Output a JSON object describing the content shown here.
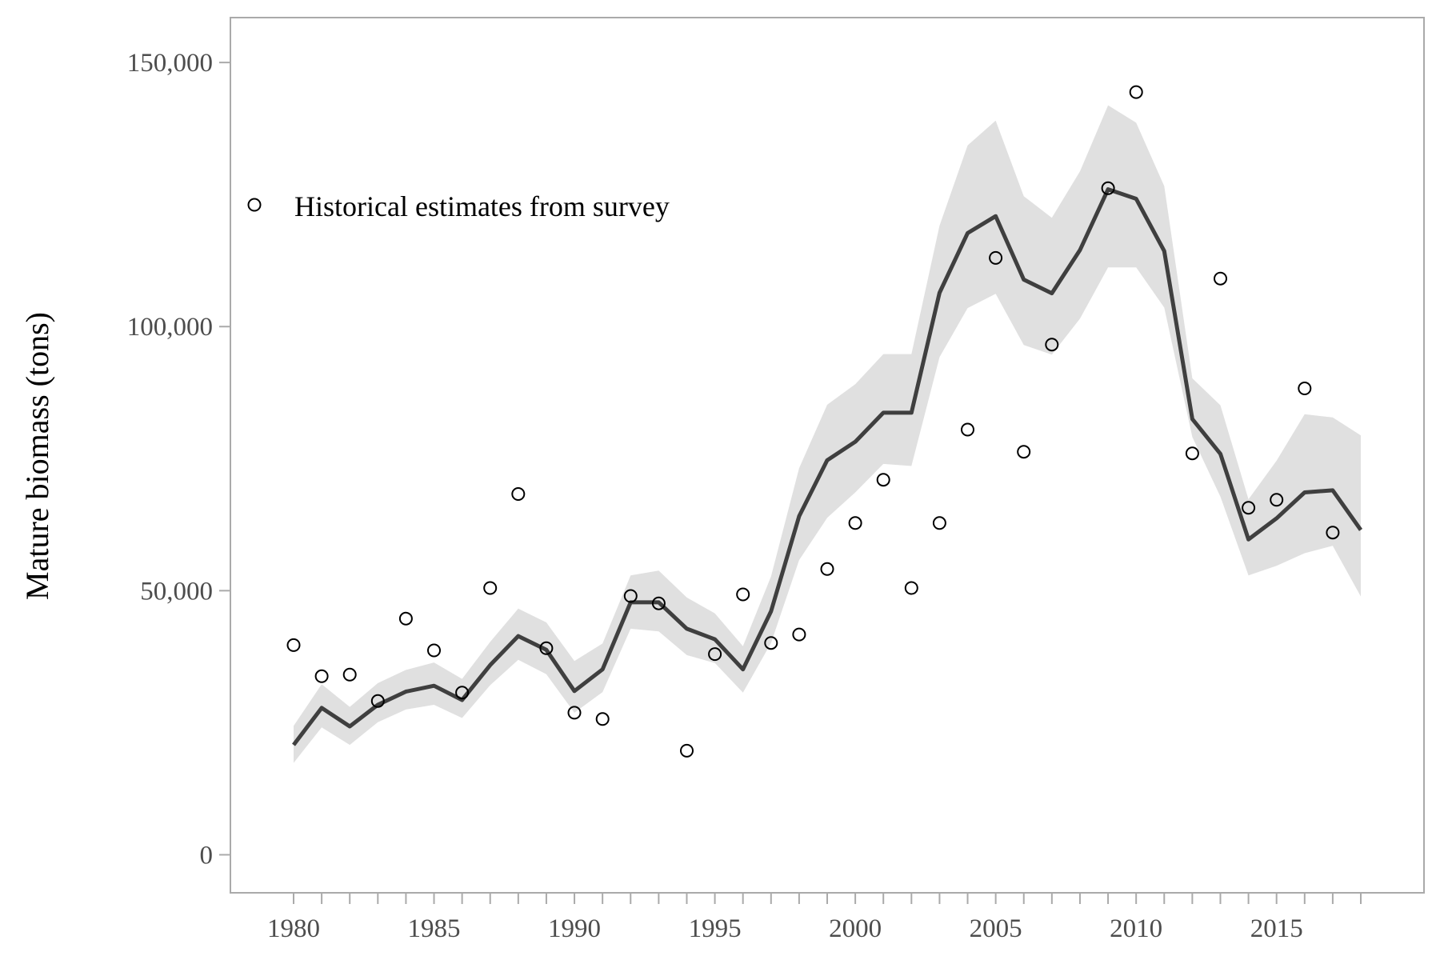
{
  "chart_data": {
    "type": "line",
    "title": "",
    "xlabel": "",
    "ylabel": "Mature biomass (tons)",
    "xlim": [
      1977.75,
      2020.25
    ],
    "ylim": [
      -7200,
      158500
    ],
    "x_ticks": [
      1980,
      1985,
      1990,
      1995,
      2000,
      2005,
      2010,
      2015
    ],
    "x_tick_labels": [
      "1980",
      "1985",
      "1990",
      "1995",
      "2000",
      "2005",
      "2010",
      "2015"
    ],
    "y_ticks": [
      0,
      50000,
      100000,
      150000
    ],
    "y_tick_labels": [
      "0",
      "50,000",
      "100,000",
      "150,000"
    ],
    "grid": false,
    "legend": {
      "position": "top-left",
      "entries": [
        "Historical estimates from survey"
      ]
    },
    "years": [
      1980,
      1981,
      1982,
      1983,
      1984,
      1985,
      1986,
      1987,
      1988,
      1989,
      1990,
      1991,
      1992,
      1993,
      1994,
      1995,
      1996,
      1997,
      1998,
      1999,
      2000,
      2001,
      2002,
      2003,
      2004,
      2005,
      2006,
      2007,
      2008,
      2009,
      2010,
      2011,
      2012,
      2013,
      2014,
      2015,
      2016,
      2017,
      2018
    ],
    "series": [
      {
        "kind": "line",
        "values": [
          20800,
          27800,
          24300,
          28400,
          30900,
          32000,
          29300,
          35900,
          41400,
          38800,
          31000,
          35100,
          47800,
          47800,
          42800,
          40800,
          35100,
          46100,
          64100,
          74700,
          78200,
          83700,
          83700,
          106400,
          117700,
          120900,
          108900,
          106300,
          114500,
          126000,
          124200,
          114300,
          82500,
          75900,
          59700,
          63700,
          68600,
          69000,
          61500
        ]
      },
      {
        "kind": "band",
        "lower": [
          17400,
          24100,
          20800,
          25100,
          27500,
          28400,
          25900,
          32100,
          36900,
          34200,
          26900,
          30800,
          42800,
          42300,
          37800,
          36300,
          30700,
          40100,
          55800,
          63800,
          68600,
          74000,
          73600,
          94200,
          103500,
          106200,
          96500,
          94700,
          101500,
          111200,
          111200,
          103600,
          79100,
          67800,
          52900,
          54700,
          57100,
          58500,
          48900
        ],
        "upper": [
          24400,
          32300,
          28000,
          32500,
          35000,
          36400,
          33300,
          40300,
          46600,
          44000,
          36700,
          40000,
          52900,
          53800,
          48700,
          45700,
          39500,
          52700,
          73200,
          85200,
          89100,
          94800,
          94800,
          119100,
          134300,
          139000,
          124700,
          120600,
          129400,
          141900,
          138600,
          126600,
          90200,
          85100,
          67300,
          74600,
          83400,
          82800,
          79400
        ]
      },
      {
        "kind": "points",
        "name": "Historical estimates from survey",
        "values": [
          39700,
          33800,
          34100,
          29100,
          44700,
          38700,
          30700,
          50500,
          68300,
          39100,
          26900,
          25700,
          49000,
          47600,
          19700,
          38000,
          49300,
          40100,
          41700,
          54100,
          62800,
          71000,
          50500,
          62800,
          80500,
          113000,
          76300,
          96600,
          null,
          126200,
          144400,
          null,
          76000,
          109100,
          65700,
          67200,
          88300,
          61000,
          null
        ]
      }
    ],
    "colors": {
      "line": "#3f3f3f",
      "band": "#e0e0e0",
      "points_stroke": "#000000",
      "axis": "#aaaaaa",
      "tick_text": "#4d4d4d"
    }
  }
}
